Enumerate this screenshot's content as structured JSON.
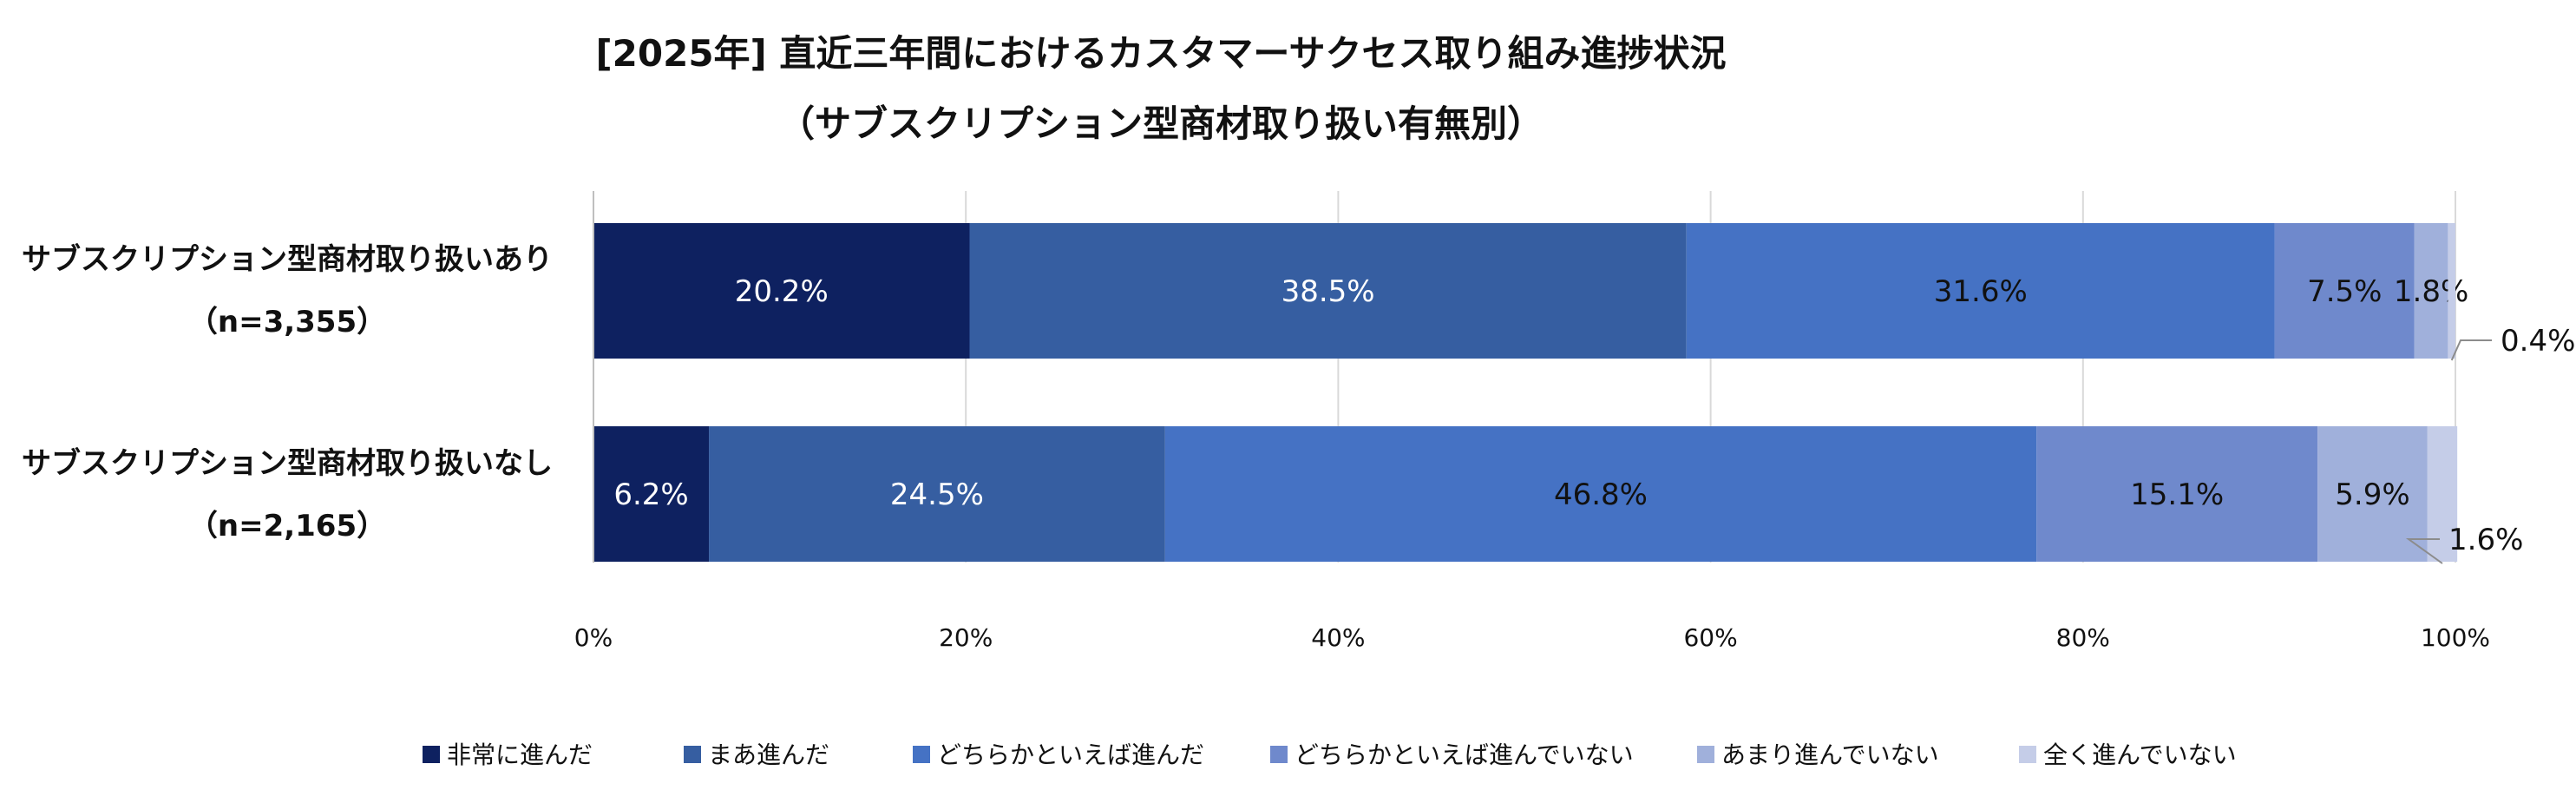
{
  "chart_data": {
    "type": "bar",
    "orientation": "horizontal",
    "stacked": true,
    "title": "[2025年] 直近三年間におけるカスタマーサクセス取り組み進捗状況",
    "subtitle": "（サブスクリプション型商材取り扱い有無別）",
    "categories": [
      {
        "name": "サブスクリプション型商材取り扱いあり",
        "n": "（n=3,355）"
      },
      {
        "name": "サブスクリプション型商材取り扱いなし",
        "n": "（n=2,165）"
      }
    ],
    "series": [
      {
        "name": "非常に進んだ",
        "color": "#0e2160",
        "text_color": "#ffffff",
        "values": [
          20.2,
          6.2
        ],
        "labels": [
          "20.2%",
          "6.2%"
        ]
      },
      {
        "name": "まあ進んだ",
        "color": "#365ea1",
        "text_color": "#ffffff",
        "values": [
          38.5,
          24.5
        ],
        "labels": [
          "38.5%",
          "24.5%"
        ]
      },
      {
        "name": "どちらかといえば進んだ",
        "color": "#4572c4",
        "text_color": "#111111",
        "values": [
          31.6,
          46.8
        ],
        "labels": [
          "31.6%",
          "46.8%"
        ]
      },
      {
        "name": "どちらかといえば進んでいない",
        "color": "#6f89cc",
        "text_color": "#111111",
        "values": [
          7.5,
          15.1
        ],
        "labels": [
          "7.5%",
          "15.1%"
        ]
      },
      {
        "name": "あまり進んでいない",
        "color": "#a0b0db",
        "text_color": "#111111",
        "values": [
          1.8,
          5.9
        ],
        "labels": [
          "1.8%",
          "5.9%"
        ]
      },
      {
        "name": "全く進んでいない",
        "color": "#c5cde8",
        "text_color": "#111111",
        "values": [
          0.4,
          1.6
        ],
        "labels": [
          "0.4%",
          "1.6%"
        ]
      }
    ],
    "x_ticks": [
      "0%",
      "20%",
      "40%",
      "60%",
      "80%",
      "100%"
    ],
    "xlim": [
      0,
      100
    ],
    "grid": true,
    "legend_position": "bottom"
  }
}
